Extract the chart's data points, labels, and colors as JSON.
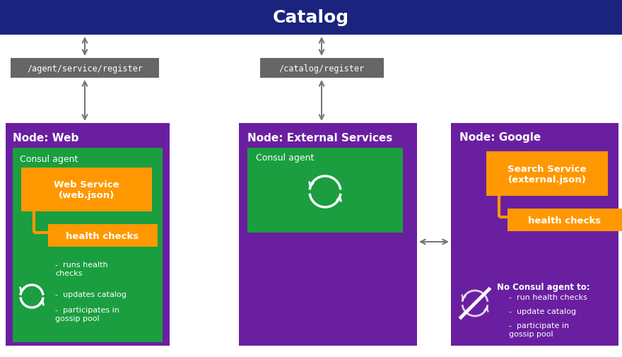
{
  "title": "Catalog",
  "title_bg": "#1a237e",
  "title_color": "#ffffff",
  "bg_color": "#ffffff",
  "node_color": "#6a1fa0",
  "consul_agent_color": "#1a9e3f",
  "orange_color": "#ff9800",
  "dark_gray_color": "#666666",
  "arrow_color": "#777777",
  "node_web_label": "Node: Web",
  "node_external_label": "Node: External Services",
  "node_google_label": "Node: Google",
  "consul_agent_label": "Consul agent",
  "web_service_label": "Web Service\n(web.json)",
  "health_checks_label": "health checks",
  "search_service_label": "Search Service\n(external.json)",
  "register_label": "/agent/service/register",
  "catalog_register_label": "/catalog/register",
  "bullet_web": [
    "runs health\nchecks",
    "updates catalog",
    "participates in\ngossip pool"
  ],
  "bullet_google": [
    "run health checks",
    "update catalog",
    "participate in\ngossip pool"
  ],
  "no_consul_label": "No Consul agent to:"
}
